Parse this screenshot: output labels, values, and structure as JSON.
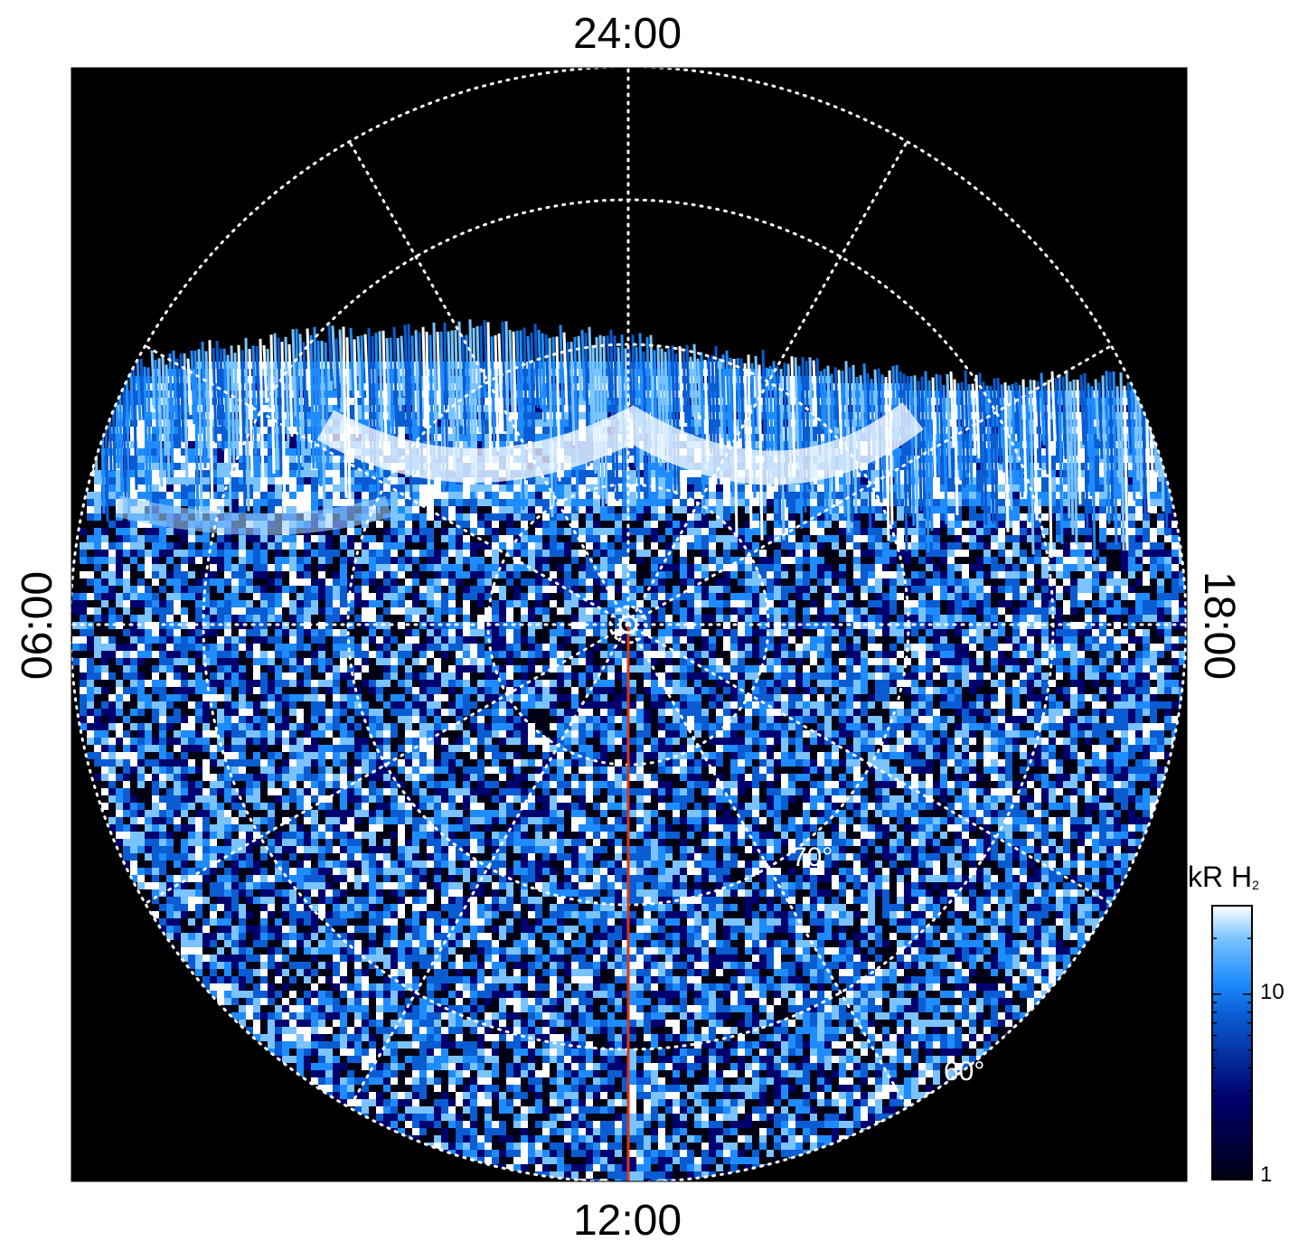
{
  "figure": {
    "local_time_labels": {
      "top": "24:00",
      "bottom": "12:00",
      "left": "06:00",
      "right": "18:00"
    },
    "latitude_labels": [
      "70°",
      "60°"
    ],
    "colorbar": {
      "title_main": "kR H",
      "title_sub": "2",
      "ticks": [
        "10",
        "1"
      ],
      "scale": "log",
      "colors": [
        "#000014",
        "#00006e",
        "#0a5cd2",
        "#1e8cff",
        "#7ac3ff",
        "#ffffff"
      ]
    },
    "colors": {
      "background": "#000000",
      "grid": "#ffffff",
      "meridian": "#d8371a"
    }
  }
}
